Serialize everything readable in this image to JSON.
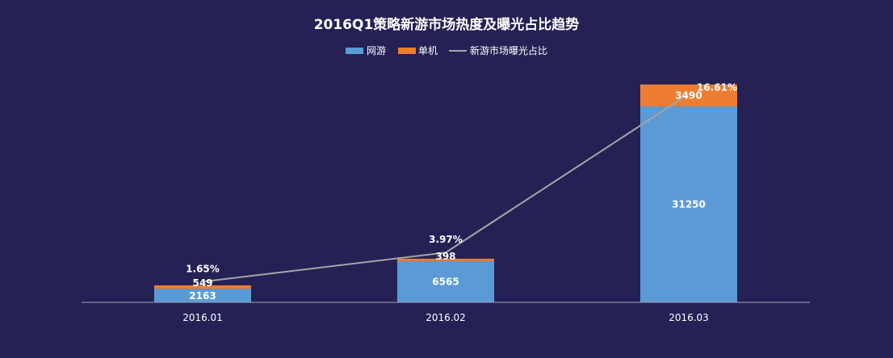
{
  "chart_data": {
    "type": "bar",
    "title": "2016Q1策略新游市场热度及曝光占比趋势",
    "categories": [
      "2016.01",
      "2016.02",
      "2016.03"
    ],
    "series": [
      {
        "name": "网游",
        "kind": "stacked-bar",
        "color": "#5b9bd5",
        "values": [
          2163,
          6565,
          31250
        ]
      },
      {
        "name": "单机",
        "kind": "stacked-bar",
        "color": "#ed7d31",
        "values": [
          549,
          398,
          3490
        ]
      },
      {
        "name": "新游市场曝光占比",
        "kind": "line",
        "color": "#a5a5a5",
        "values": [
          1.65,
          3.97,
          16.61
        ],
        "labels": [
          "1.65%",
          "3.97%",
          "16.61%"
        ]
      }
    ],
    "ylim": [
      0,
      36000
    ],
    "y2lim": [
      0,
      18
    ],
    "grid": false,
    "legend_position": "top-center",
    "axis_color": "#a0a0b8"
  }
}
